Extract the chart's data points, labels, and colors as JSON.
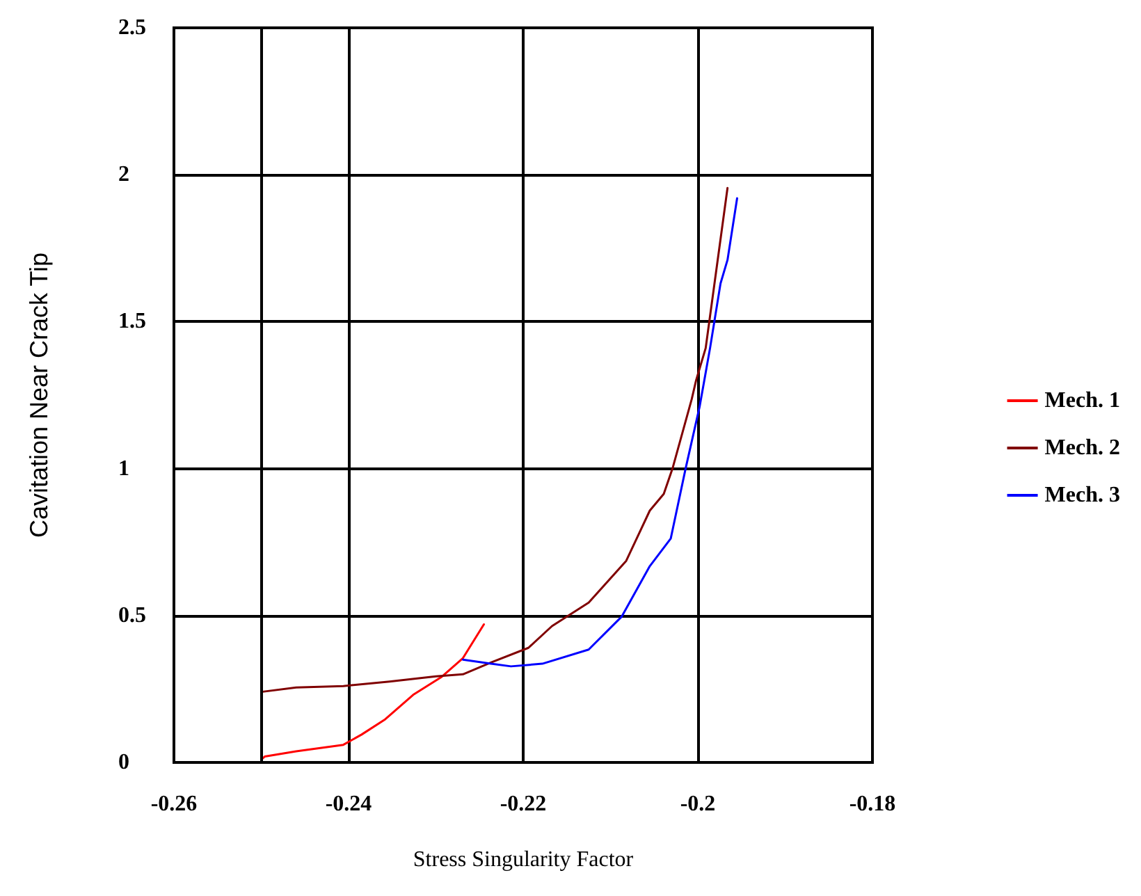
{
  "chart_data": {
    "type": "line",
    "xlabel": "Stress Singularity Factor",
    "ylabel": "Cavitation Near Crack Tip",
    "xlim": [
      -0.26,
      -0.18
    ],
    "xticks": [
      -0.26,
      -0.24,
      -0.22,
      -0.2,
      -0.18
    ],
    "ylim": [
      0,
      2.5
    ],
    "yticks": [
      0,
      0.5,
      1,
      1.5,
      2,
      2.5
    ],
    "grid": true,
    "legend": "right",
    "marker": "none",
    "line_style": "solid",
    "ref_lines": [
      {
        "axis": "x",
        "value": -0.25,
        "color": "#000000"
      }
    ],
    "series": [
      {
        "name": "Mech. 1",
        "color": "#ff0000",
        "x": [
          -0.25,
          -0.2496,
          -0.246,
          -0.2406,
          -0.2385,
          -0.2358,
          -0.2326,
          -0.2294,
          -0.2269,
          -0.2245
        ],
        "values": [
          0.01,
          0.02,
          0.038,
          0.06,
          0.095,
          0.147,
          0.23,
          0.29,
          0.355,
          0.47
        ]
      },
      {
        "name": "Mech. 2",
        "color": "#800000",
        "x": [
          -0.25,
          -0.246,
          -0.2406,
          -0.2353,
          -0.23,
          -0.2269,
          -0.2237,
          -0.2194,
          -0.2167,
          -0.2125,
          -0.2082,
          -0.2055,
          -0.2039,
          -0.2029,
          -0.2007,
          -0.2002,
          -0.1991,
          -0.1966
        ],
        "values": [
          0.24,
          0.255,
          0.26,
          0.275,
          0.293,
          0.3,
          0.34,
          0.39,
          0.464,
          0.544,
          0.686,
          0.857,
          0.914,
          1.0,
          1.236,
          1.3,
          1.41,
          1.955
        ]
      },
      {
        "name": "Mech. 3",
        "color": "#0000ff",
        "x": [
          -0.2269,
          -0.2237,
          -0.2214,
          -0.2178,
          -0.2125,
          -0.2087,
          -0.2055,
          -0.2031,
          -0.2014,
          -0.1998,
          -0.1986,
          -0.1974,
          -0.1966,
          -0.1955
        ],
        "values": [
          0.35,
          0.336,
          0.327,
          0.336,
          0.384,
          0.497,
          0.668,
          0.762,
          1.0,
          1.21,
          1.41,
          1.63,
          1.71,
          1.92
        ]
      }
    ]
  }
}
